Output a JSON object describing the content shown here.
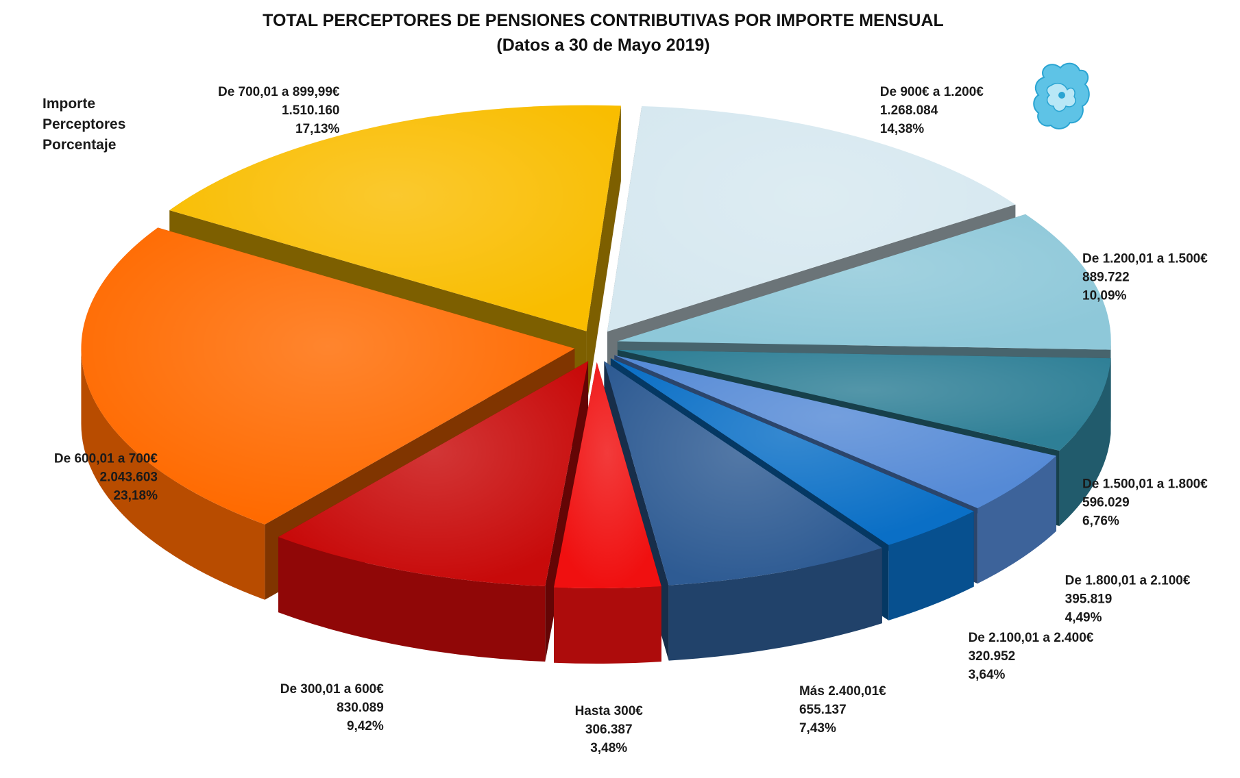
{
  "chart_data": {
    "type": "pie",
    "style": "3d-exploded",
    "title": "TOTAL PERCEPTORES  DE PENSIONES CONTRIBUTIVAS POR IMPORTE MENSUAL",
    "subtitle": "(Datos a 30 de Mayo 2019)",
    "legend": {
      "placement": "top-left",
      "items": [
        "Importe",
        "Perceptores",
        "Porcentaje"
      ]
    },
    "slices": [
      {
        "label": "De 900€ a 1.200€",
        "perceptores": "1.268.084",
        "porcentaje": "14,38%",
        "value": 1268084,
        "color": "#d6e8f0"
      },
      {
        "label": "De 1.200,01 a 1.500€",
        "perceptores": "889.722",
        "porcentaje": "10,09%",
        "value": 889722,
        "color": "#8ec8d9"
      },
      {
        "label": "De 1.500,01 a 1.800€",
        "perceptores": "596.029",
        "porcentaje": "6,76%",
        "value": 596029,
        "color": "#2e7f96"
      },
      {
        "label": "De 1.800,01 a 2.100€",
        "perceptores": "395.819",
        "porcentaje": "4,49%",
        "value": 395819,
        "color": "#558ad6"
      },
      {
        "label": "De 2.100,01 a 2.400€",
        "perceptores": "320.952",
        "porcentaje": "3,64%",
        "value": 320952,
        "color": "#0a6fc6"
      },
      {
        "label": "Más 2.400,01€",
        "perceptores": "655.137",
        "porcentaje": "7,43%",
        "value": 655137,
        "color": "#2e5b93"
      },
      {
        "label": "Hasta 300€",
        "perceptores": "306.387",
        "porcentaje": "3,48%",
        "value": 306387,
        "color": "#f01010"
      },
      {
        "label": "De 300,01 a 600€",
        "perceptores": "830.089",
        "porcentaje": "9,42%",
        "value": 830089,
        "color": "#c80a0a"
      },
      {
        "label": "De 600,01 a 700€",
        "perceptores": "2.043.603",
        "porcentaje": "23,18%",
        "value": 2043603,
        "color": "#ff6a00"
      },
      {
        "label": "De 700,01 a 899,99€",
        "perceptores": "1.510.160",
        "porcentaje": "17,13%",
        "value": 1510160,
        "color": "#f9bd00"
      }
    ]
  }
}
